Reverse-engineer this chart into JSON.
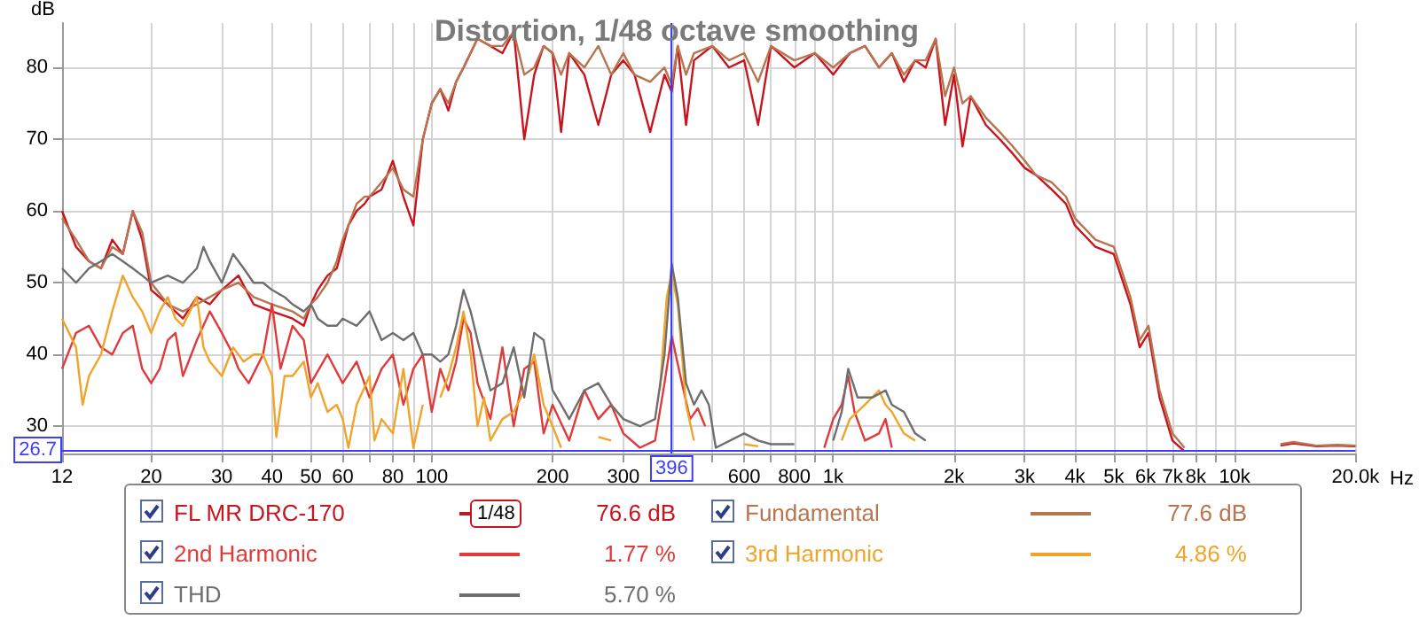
{
  "chart_data": {
    "type": "line",
    "title": "Distortion, 1/48 octave smoothing",
    "xlabel": "Hz",
    "ylabel": "dB",
    "log": "x",
    "grid": true,
    "legend": "bottom",
    "xlim": [
      12,
      20000
    ],
    "ylim": [
      26.2,
      86.2
    ],
    "xticks": [
      12,
      20,
      30,
      40,
      50,
      60,
      {
        "value": 70,
        "label": null
      },
      80,
      {
        "value": 90,
        "label": null
      },
      100,
      200,
      300,
      {
        "value": 400,
        "label": null
      },
      {
        "value": 500,
        "label": null
      },
      600,
      {
        "value": 700,
        "label": null
      },
      800,
      {
        "value": 900,
        "label": null
      },
      {
        "value": 1000,
        "label": "1k"
      },
      {
        "value": 2000,
        "label": "2k"
      },
      {
        "value": 3000,
        "label": "3k"
      },
      {
        "value": 4000,
        "label": "4k"
      },
      {
        "value": 5000,
        "label": "5k"
      },
      {
        "value": 6000,
        "label": "6k"
      },
      {
        "value": 7000,
        "label": "7k"
      },
      {
        "value": 8000,
        "label": "8k"
      },
      {
        "value": 9000,
        "label": null
      },
      {
        "value": 10000,
        "label": "10k"
      },
      {
        "value": 20000,
        "label": "20.0k"
      }
    ],
    "yticks": [
      30,
      40,
      50,
      60,
      70,
      80
    ],
    "ref_lines": [
      {
        "axis": "x",
        "value": 396,
        "label": "396",
        "color": "#3c3cff"
      },
      {
        "axis": "y",
        "value": 26.7,
        "label": "26.7",
        "color": "#3c3cff"
      }
    ],
    "annotations": [
      "1/48",
      "76.6 dB",
      "77.6 dB",
      "1.77 %",
      "4.86 %",
      "5.70 %"
    ],
    "series": [
      {
        "name": "FL MR DRC-170",
        "color": "#c8141e",
        "x": [
          12,
          13,
          14,
          15,
          16,
          17,
          18,
          19,
          20,
          22,
          24,
          26,
          28,
          30,
          33,
          36,
          40,
          45,
          48,
          50,
          52,
          55,
          58,
          60,
          62,
          65,
          68,
          70,
          75,
          80,
          85,
          90,
          95,
          100,
          105,
          110,
          115,
          120,
          130,
          140,
          150,
          160,
          170,
          180,
          190,
          200,
          210,
          220,
          240,
          260,
          280,
          300,
          320,
          350,
          380,
          396,
          410,
          430,
          450,
          500,
          550,
          600,
          650,
          700,
          800,
          900,
          1000,
          1100,
          1200,
          1300,
          1400,
          1500,
          1600,
          1700,
          1800,
          1900,
          2000,
          2100,
          2200,
          2400,
          2600,
          2800,
          3000,
          3200,
          3500,
          3800,
          4000,
          4500,
          5000,
          5500,
          5800,
          6100,
          6500,
          7000,
          7500,
          8000,
          12000,
          13000,
          14000,
          16000,
          18000,
          20000
        ],
        "values": [
          60,
          55,
          53,
          52,
          56,
          54,
          60,
          56,
          49,
          47,
          45,
          48,
          47,
          49,
          51,
          47,
          46,
          45,
          44,
          47,
          49,
          51,
          52,
          55,
          58,
          60,
          61,
          62,
          63,
          67,
          62,
          58,
          70,
          75,
          77,
          74,
          78,
          80,
          84,
          83,
          82,
          85,
          70,
          79,
          83,
          82,
          71,
          82,
          79,
          72,
          79,
          81,
          79,
          71,
          79,
          76.6,
          83,
          72,
          81,
          83,
          80,
          81,
          72,
          83,
          80,
          82,
          79,
          82,
          83,
          80,
          82,
          78,
          81,
          80,
          84,
          72,
          79,
          69,
          76,
          72,
          70,
          68,
          66,
          65,
          63,
          61,
          58,
          55,
          54,
          47,
          41,
          43,
          34,
          28,
          26.5,
          null,
          null,
          27.3,
          27.6,
          27.2,
          27.3,
          27.2
        ]
      },
      {
        "name": "Fundamental",
        "color": "#b8744e",
        "x": [
          12,
          13,
          14,
          15,
          16,
          17,
          18,
          19,
          20,
          22,
          24,
          26,
          28,
          30,
          33,
          36,
          40,
          45,
          48,
          50,
          52,
          55,
          58,
          60,
          62,
          65,
          68,
          70,
          75,
          80,
          85,
          90,
          95,
          100,
          105,
          110,
          115,
          120,
          130,
          140,
          150,
          160,
          170,
          180,
          190,
          200,
          210,
          220,
          240,
          260,
          280,
          300,
          320,
          350,
          380,
          396,
          410,
          430,
          450,
          500,
          550,
          600,
          650,
          700,
          800,
          900,
          1000,
          1100,
          1200,
          1300,
          1400,
          1500,
          1600,
          1700,
          1800,
          1900,
          2000,
          2100,
          2200,
          2400,
          2600,
          2800,
          3000,
          3200,
          3500,
          3800,
          4000,
          4500,
          5000,
          5500,
          5800,
          6100,
          6500,
          7000,
          7500,
          8000,
          12000,
          13000,
          14000,
          16000,
          18000,
          20000
        ],
        "values": [
          59,
          56,
          53,
          52,
          55,
          54,
          60,
          57,
          50,
          47,
          46,
          47,
          48,
          49,
          50,
          48,
          47,
          46,
          45,
          47,
          48,
          50,
          53,
          56,
          58,
          61,
          62,
          62,
          64,
          66,
          63,
          62,
          70,
          75,
          77,
          75,
          78,
          80,
          84,
          83,
          83,
          85,
          79,
          80,
          83,
          82,
          79,
          82,
          80,
          83,
          79,
          82,
          79,
          78,
          80,
          77.6,
          83,
          79,
          82,
          83,
          81,
          82,
          78,
          83,
          81,
          82,
          80,
          82,
          83,
          80,
          82,
          79,
          81,
          81,
          84,
          76,
          80,
          75,
          76,
          73,
          71,
          69,
          67,
          65,
          64,
          62,
          59,
          56,
          55,
          48,
          42,
          44,
          35,
          29,
          27,
          null,
          null,
          27.5,
          27.8,
          27.3,
          27.4,
          27.3
        ]
      },
      {
        "name": "2nd Harmonic",
        "color": "#e03a3a",
        "x": [
          12,
          13,
          14,
          15,
          16,
          17,
          18,
          19,
          20,
          21,
          22,
          23,
          24,
          26,
          28,
          30,
          32,
          33,
          35,
          38,
          40,
          42,
          45,
          48,
          50,
          55,
          60,
          65,
          70,
          75,
          80,
          85,
          90,
          95,
          100,
          105,
          110,
          115,
          120,
          125,
          130,
          140,
          150,
          160,
          170,
          180,
          190,
          200,
          220,
          240,
          260,
          280,
          300,
          330,
          360,
          380,
          396,
          420,
          440,
          460,
          480,
          500,
          950,
          1000,
          1050,
          1090,
          1130,
          1200,
          1300,
          1350,
          1400
        ],
        "values": [
          38,
          43,
          44,
          41,
          40,
          43,
          44,
          38,
          36,
          38,
          42,
          43,
          37,
          42,
          46,
          43,
          40,
          38,
          36,
          40,
          47,
          38,
          44,
          42,
          36,
          40,
          36,
          39,
          34,
          38,
          40,
          33,
          38,
          40,
          32,
          38,
          35,
          39,
          45,
          43,
          36,
          31,
          41,
          30,
          38,
          39,
          29,
          33,
          28,
          35,
          31,
          33,
          29,
          27,
          28,
          36,
          42.6,
          36,
          31,
          32.5,
          30,
          null,
          27,
          31,
          33,
          37,
          32,
          28,
          29,
          31,
          27
        ]
      },
      {
        "name": "3rd Harmonic",
        "color": "#f0a42a",
        "x": [
          12,
          13,
          13.5,
          14,
          15,
          16,
          17,
          18,
          19,
          20,
          21,
          22,
          23,
          24,
          26,
          27,
          28,
          30,
          32,
          34,
          36,
          38,
          40,
          41,
          43,
          45,
          48,
          50,
          52,
          55,
          58,
          60,
          62,
          65,
          70,
          72,
          75,
          80,
          85,
          90,
          95,
          100,
          105,
          110,
          115,
          120,
          125,
          130,
          135,
          140,
          150,
          160,
          170,
          180,
          190,
          200,
          210,
          230,
          260,
          280,
          300,
          370,
          385,
          396,
          410,
          430,
          450,
          480,
          600,
          650,
          700,
          1050,
          1100,
          1200,
          1300,
          1350,
          1400,
          1500,
          1600
        ],
        "values": [
          45,
          41,
          33,
          37,
          40,
          46,
          51,
          48,
          46,
          43,
          46,
          48,
          45,
          44,
          48,
          41,
          39,
          37,
          41,
          39,
          40,
          40,
          37,
          28.5,
          37,
          37,
          39,
          34,
          36,
          32,
          33,
          31,
          27,
          33,
          37,
          28,
          31,
          29,
          38,
          27,
          33,
          null,
          34,
          37,
          41,
          46,
          40,
          30,
          34,
          28,
          31,
          32,
          35,
          40,
          33,
          30,
          27,
          null,
          28.5,
          28,
          null,
          35,
          48,
          51.3,
          47,
          33,
          28,
          null,
          27.5,
          27.2,
          null,
          28,
          31,
          33,
          35,
          33,
          32,
          29,
          28
        ]
      },
      {
        "name": "THD",
        "color": "#6e6e6e",
        "x": [
          12,
          13,
          14,
          15,
          16,
          17,
          18,
          19,
          20,
          22,
          24,
          26,
          27,
          28,
          30,
          32,
          34,
          36,
          38,
          40,
          43,
          45,
          48,
          50,
          52,
          55,
          58,
          60,
          65,
          70,
          75,
          80,
          85,
          90,
          95,
          100,
          105,
          110,
          115,
          120,
          125,
          130,
          140,
          150,
          160,
          170,
          180,
          190,
          200,
          210,
          220,
          240,
          260,
          280,
          300,
          330,
          360,
          380,
          396,
          410,
          430,
          450,
          470,
          490,
          510,
          600,
          650,
          700,
          800,
          900,
          1000,
          1050,
          1090,
          1150,
          1250,
          1350,
          1400,
          1500,
          1600,
          1700
        ],
        "values": [
          52,
          50,
          52,
          53,
          54,
          53,
          52,
          51,
          50,
          51,
          50,
          52,
          55,
          53,
          50,
          54,
          52,
          50,
          50,
          49,
          48,
          47,
          46,
          47,
          45,
          44,
          44,
          45,
          44,
          46,
          42,
          43,
          42,
          43,
          40,
          40,
          39,
          40,
          44,
          49,
          46,
          42,
          35,
          36,
          41,
          34,
          43,
          42,
          35,
          33,
          31,
          35,
          36,
          33,
          31,
          30,
          31,
          40,
          52.7,
          48,
          36,
          33,
          35,
          33,
          27,
          29,
          28,
          27.5,
          27.5,
          null,
          28,
          32,
          38,
          34,
          34,
          35,
          33,
          32,
          29,
          28
        ]
      }
    ]
  }
}
